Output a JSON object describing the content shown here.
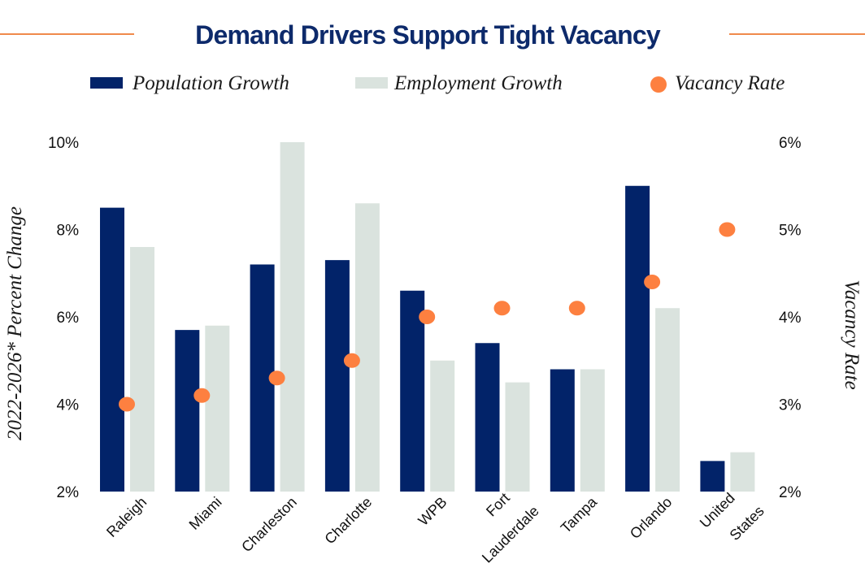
{
  "chart_data": {
    "type": "bar",
    "title": "Demand Drivers Support Tight Vacancy",
    "categories": [
      [
        "Raleigh"
      ],
      [
        "Miami"
      ],
      [
        "Charleston"
      ],
      [
        "Charlotte"
      ],
      [
        "WPB"
      ],
      [
        "Fort",
        "Lauderdale"
      ],
      [
        "Tampa"
      ],
      [
        "Orlando"
      ],
      [
        "United",
        "States"
      ]
    ],
    "series": [
      {
        "name": "Population Growth",
        "type": "bar",
        "axis": "left",
        "color": "#022369",
        "values": [
          8.5,
          5.7,
          7.2,
          7.3,
          6.6,
          5.4,
          4.8,
          9.0,
          2.7
        ]
      },
      {
        "name": "Employment Growth",
        "type": "bar",
        "axis": "left",
        "color": "#dae3de",
        "values": [
          7.6,
          5.8,
          10.0,
          8.6,
          5.0,
          4.5,
          4.8,
          6.2,
          2.9
        ]
      },
      {
        "name": "Vacancy Rate",
        "type": "scatter",
        "axis": "right",
        "color": "#fd8040",
        "values": [
          3.0,
          3.1,
          3.3,
          3.5,
          4.0,
          4.1,
          4.1,
          4.4,
          5.0
        ]
      }
    ],
    "ylabel": "2022-2026* Percent Change",
    "y2label": "Vacancy Rate",
    "ylim": [
      2,
      10
    ],
    "y2lim": [
      2,
      6
    ],
    "yticks": [
      "2%",
      "4%",
      "6%",
      "8%",
      "10%"
    ],
    "yticks_values": [
      2,
      4,
      6,
      8,
      10
    ],
    "y2ticks": [
      "2%",
      "3%",
      "4%",
      "5%",
      "6%"
    ],
    "y2ticks_values": [
      2,
      3,
      4,
      5,
      6
    ],
    "grid": false,
    "legend_position": "top",
    "accent_line_color": "#f08a4b"
  }
}
